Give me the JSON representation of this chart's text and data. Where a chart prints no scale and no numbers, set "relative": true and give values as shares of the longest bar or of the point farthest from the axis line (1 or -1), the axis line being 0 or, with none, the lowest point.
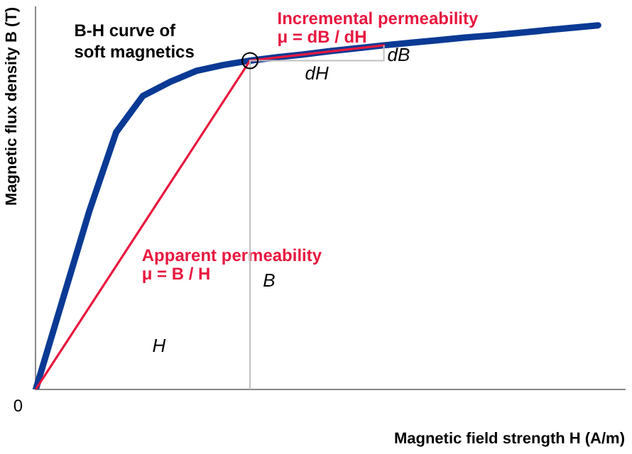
{
  "chart_data": {
    "type": "line",
    "title": "B-H curve of soft magnetics",
    "xlabel": "Magnetic field strength H (A/m)",
    "ylabel": "Magnetic flux density B (T)",
    "relative": true,
    "grid": false,
    "legend": false,
    "marker": "none",
    "line_style": "solid",
    "categories": [
      null,
      null,
      null,
      null,
      null,
      null,
      null,
      null,
      null,
      null,
      null,
      null,
      null,
      null,
      null,
      null,
      null,
      null,
      null,
      null,
      null,
      null,
      null
    ],
    "series": [
      {
        "color": "#0a3a94",
        "values": [
          0,
          0.245,
          0.49,
          0.706,
          0.806,
          0.844,
          0.875,
          0.891,
          0.903,
          0.912,
          0.92,
          0.929,
          0.937,
          0.945,
          0.952,
          0.959,
          0.966,
          0.972,
          0.979,
          0.986,
          0.993,
          1.0,
          null
        ]
      },
      {
        "color": "#e8173f",
        "values": [
          0,
          null,
          null,
          null,
          null,
          null,
          null,
          null,
          0.903,
          null,
          null,
          null,
          null,
          null,
          null,
          null,
          null,
          null,
          null,
          null,
          null,
          null,
          null
        ]
      },
      {
        "color": "#e8173f",
        "values": [
          null,
          null,
          null,
          null,
          null,
          null,
          null,
          null,
          0.903,
          null,
          null,
          null,
          null,
          0.945,
          null,
          null,
          null,
          null,
          null,
          null,
          null,
          null,
          null
        ]
      }
    ],
    "annotations": [
      "0",
      "Incremental permeability\nμ = dB / dH",
      "Apparent permeability\nμ = B / H",
      "dH",
      "dB",
      "B",
      "H"
    ]
  }
}
